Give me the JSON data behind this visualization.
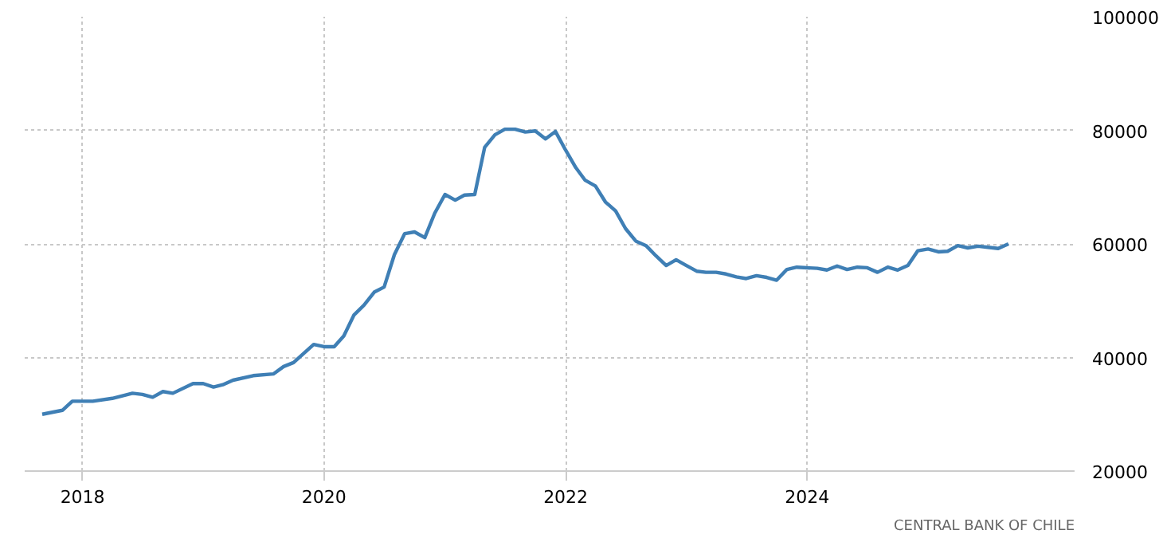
{
  "chart_data": {
    "type": "line",
    "annotations": [
      "CENTRAL BANK OF CHILE"
    ],
    "x": [
      "2017-09",
      "2017-11",
      "2017-12",
      "2018-02",
      "2018-04",
      "2018-06",
      "2018-07",
      "2018-08",
      "2018-09",
      "2018-10",
      "2018-12",
      "2019-01",
      "2019-02",
      "2019-03",
      "2019-04",
      "2019-06",
      "2019-08",
      "2019-09",
      "2019-10",
      "2019-12",
      "2020-01",
      "2020-02",
      "2020-03",
      "2020-04",
      "2020-05",
      "2020-06",
      "2020-07",
      "2020-08",
      "2020-09",
      "2020-10",
      "2020-11",
      "2020-12",
      "2021-01",
      "2021-02",
      "2021-03",
      "2021-04",
      "2021-05",
      "2021-06",
      "2021-07",
      "2021-08",
      "2021-09",
      "2021-10",
      "2021-11",
      "2021-12",
      "2022-01",
      "2022-02",
      "2022-03",
      "2022-04",
      "2022-05",
      "2022-06",
      "2022-07",
      "2022-08",
      "2022-09",
      "2022-10",
      "2022-11",
      "2022-12",
      "2023-01",
      "2023-02",
      "2023-03",
      "2023-04",
      "2023-05",
      "2023-06",
      "2023-07",
      "2023-08",
      "2023-09",
      "2023-10",
      "2023-11",
      "2023-12",
      "2024-02",
      "2024-03",
      "2024-04",
      "2024-05",
      "2024-06",
      "2024-07",
      "2024-08",
      "2024-09",
      "2024-10",
      "2024-11",
      "2024-12",
      "2025-01",
      "2025-02",
      "2025-03",
      "2025-04",
      "2025-05",
      "2025-06",
      "2025-07",
      "2025-08",
      "2025-09"
    ],
    "series": [
      {
        "color": "#3f7fb5",
        "values": [
          30000,
          30700,
          32300,
          32300,
          32800,
          33700,
          33500,
          33000,
          34000,
          33700,
          35400,
          35400,
          34800,
          35200,
          36000,
          36800,
          37100,
          38400,
          39100,
          42300,
          41900,
          41900,
          43800,
          47500,
          49200,
          51500,
          52400,
          58100,
          61800,
          62100,
          61100,
          65400,
          68700,
          67700,
          68600,
          68700,
          77000,
          79200,
          80200,
          80200,
          79700,
          79900,
          78500,
          79800,
          76500,
          73400,
          71200,
          70200,
          67400,
          65800,
          62700,
          60500,
          59700,
          57900,
          56200,
          57200,
          56200,
          55200,
          55000,
          55000,
          54700,
          54200,
          53900,
          54400,
          54100,
          53600,
          55500,
          55900,
          55700,
          55400,
          56100,
          55500,
          55900,
          55800,
          55000,
          55900,
          55400,
          56200,
          58800,
          59100,
          58600,
          58700,
          59700,
          59300,
          59600,
          59400,
          59200,
          60000
        ]
      }
    ],
    "xlim": [
      "2017-07-10",
      "2026-03-20"
    ],
    "xticks": [
      {
        "value": "2018-01-01",
        "label": "2018"
      },
      {
        "value": "2020-01-01",
        "label": "2020"
      },
      {
        "value": "2022-01-01",
        "label": "2022"
      },
      {
        "value": "2024-01-01",
        "label": "2024"
      }
    ],
    "ylim": [
      20000,
      100000
    ],
    "yticks": [
      20000,
      40000,
      60000,
      80000,
      100000
    ],
    "grid": true,
    "line_style": "solid"
  }
}
